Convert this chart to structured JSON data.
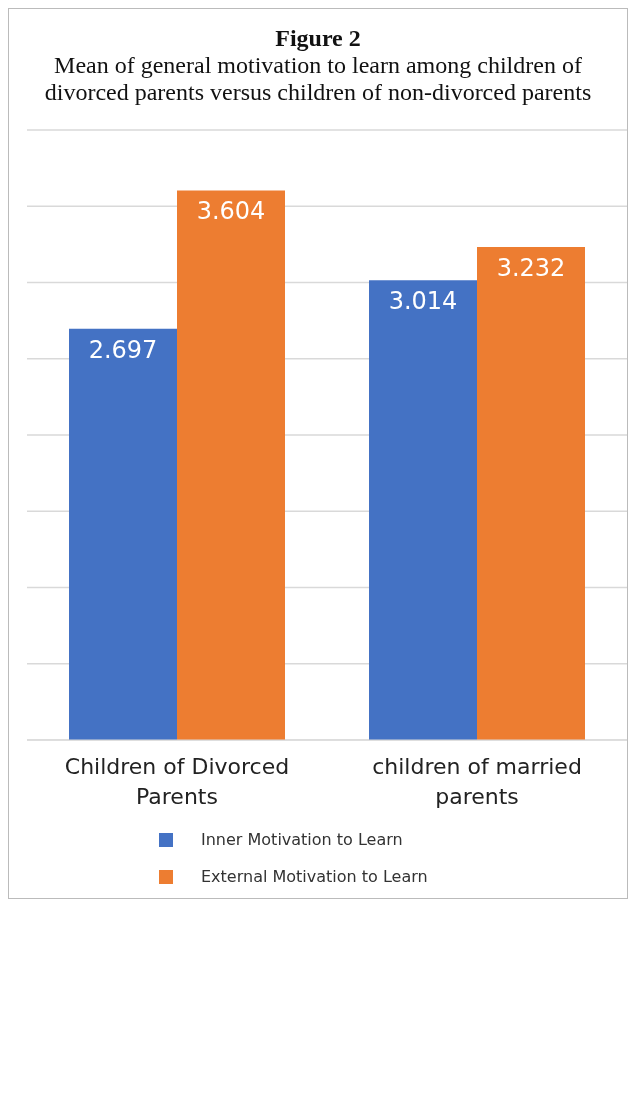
{
  "chart_data": {
    "type": "bar",
    "title": "Figure 2",
    "subtitle": "Mean of general motivation to learn among children of divorced parents versus children of non-divorced parents",
    "categories": [
      "Children of Divorced Parents",
      "children of married parents"
    ],
    "series": [
      {
        "name": "Inner Motivation to Learn",
        "color": "#4472c4",
        "values": [
          2.697,
          3.014
        ]
      },
      {
        "name": "External Motivation to Learn",
        "color": "#ed7d31",
        "values": [
          3.604,
          3.232
        ]
      }
    ],
    "ylim": [
      0,
      4
    ],
    "yticks": [
      {
        "value": 0,
        "label": null
      },
      {
        "value": 0.5,
        "label": null
      },
      {
        "value": 1,
        "label": null
      },
      {
        "value": 1.5,
        "label": null
      },
      {
        "value": 2,
        "label": null
      },
      {
        "value": 2.5,
        "label": null
      },
      {
        "value": 3,
        "label": null
      },
      {
        "value": 3.5,
        "label": null
      },
      {
        "value": 4,
        "label": null
      }
    ],
    "tick_labels": "x",
    "grid": "y",
    "data_labels": true,
    "legend": "bottom"
  }
}
